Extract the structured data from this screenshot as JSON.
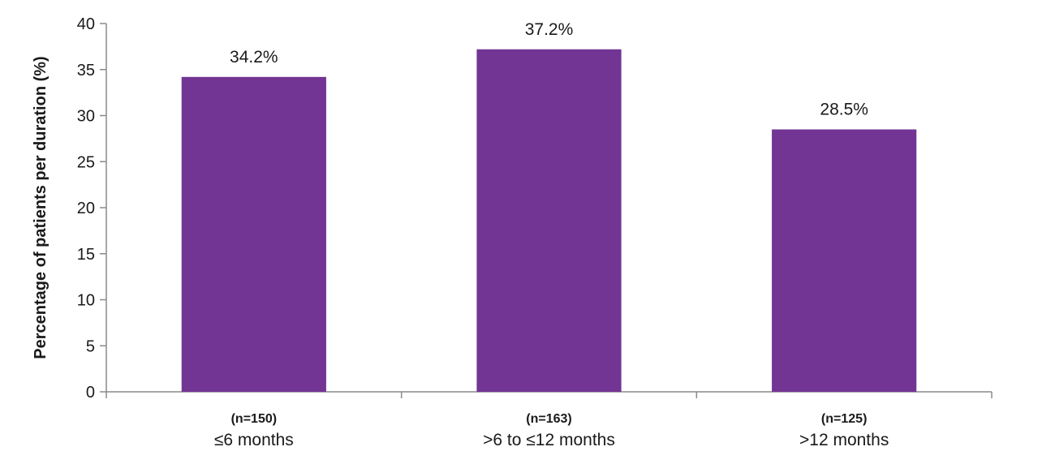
{
  "chart_data": {
    "type": "bar",
    "title": "",
    "xlabel": "",
    "ylabel": "Percentage of patients per duration (%)",
    "ylim": [
      0,
      40
    ],
    "yticks": [
      0,
      5,
      10,
      15,
      20,
      25,
      30,
      35,
      40
    ],
    "categories": [
      "≤6 months",
      ">6 to ≤12 months",
      ">12 months"
    ],
    "category_n": [
      "(n=150)",
      "(n=163)",
      "(n=125)"
    ],
    "values": [
      34.2,
      37.2,
      28.5
    ],
    "value_labels": [
      "34.2%",
      "37.2%",
      "28.5%"
    ],
    "bar_color": "#723594",
    "grid": false,
    "legend": "none"
  }
}
